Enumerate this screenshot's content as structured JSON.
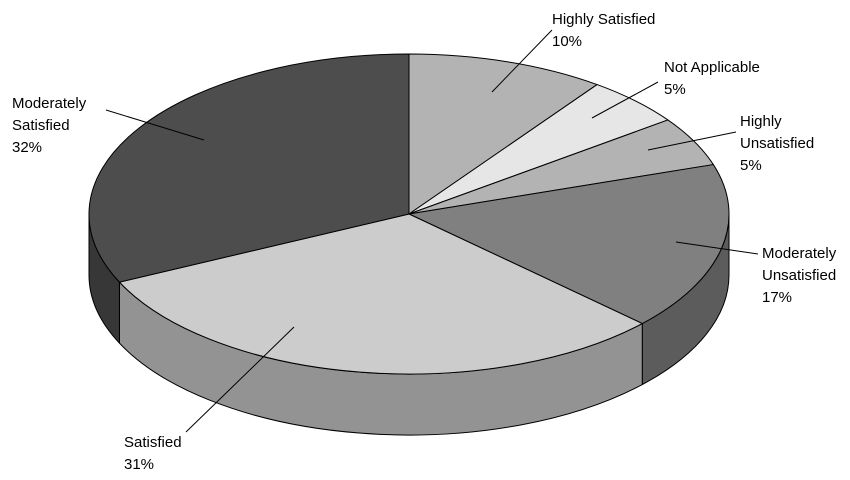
{
  "chart_data": {
    "type": "pie",
    "title": "",
    "style": "3d",
    "legend": "none",
    "slices": [
      {
        "label_lines": [
          "Highly Satisfied"
        ],
        "value": 10,
        "value_label": "10%",
        "color": "#b3b3b3"
      },
      {
        "label_lines": [
          "Not Applicable"
        ],
        "value": 5,
        "value_label": "5%",
        "color": "#e6e6e6"
      },
      {
        "label_lines": [
          "Highly",
          "Unsatisfied"
        ],
        "value": 5,
        "value_label": "5%",
        "color": "#b3b3b3"
      },
      {
        "label_lines": [
          "Moderately",
          "Unsatisfied"
        ],
        "value": 17,
        "value_label": "17%",
        "color": "#808080"
      },
      {
        "label_lines": [
          "Satisfied"
        ],
        "value": 31,
        "value_label": "31%",
        "color": "#cccccc"
      },
      {
        "label_lines": [
          "Moderately",
          "Satisfied"
        ],
        "value": 32,
        "value_label": "32%",
        "color": "#4d4d4d"
      }
    ]
  }
}
